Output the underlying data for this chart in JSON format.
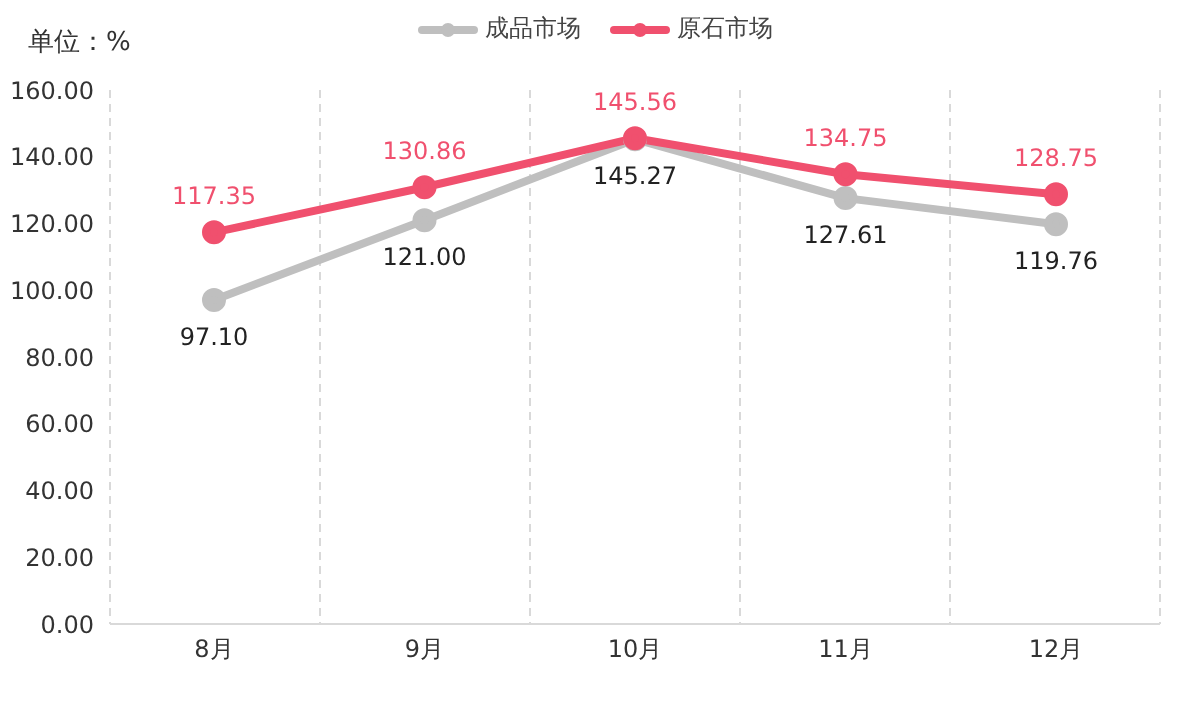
{
  "chart_data": {
    "type": "line",
    "annotations": [
      "单位：%"
    ],
    "categories": [
      "8月",
      "9月",
      "10月",
      "11月",
      "12月"
    ],
    "series": [
      {
        "name": "成品市场",
        "color": "#bfbfbf",
        "values": [
          97.1,
          121.0,
          145.27,
          127.61,
          119.76
        ],
        "value_labels": [
          "97.10",
          "121.00",
          "145.27",
          "127.61",
          "119.76"
        ]
      },
      {
        "name": "原石市场",
        "color": "#f0506e",
        "values": [
          117.35,
          130.86,
          145.56,
          134.75,
          128.75
        ],
        "value_labels": [
          "117.35",
          "130.86",
          "145.56",
          "134.75",
          "128.75"
        ]
      }
    ],
    "ylim": [
      0,
      160
    ],
    "yticks": [
      {
        "value": 0,
        "label": "0.00"
      },
      {
        "value": 20,
        "label": "20.00"
      },
      {
        "value": 40,
        "label": "40.00"
      },
      {
        "value": 60,
        "label": "60.00"
      },
      {
        "value": 80,
        "label": "80.00"
      },
      {
        "value": 100,
        "label": "100.00"
      },
      {
        "value": 120,
        "label": "120.00"
      },
      {
        "value": 140,
        "label": "140.00"
      },
      {
        "value": 160,
        "label": "160.00"
      }
    ],
    "grid": "x",
    "legend": "top",
    "marker": "circle",
    "line_style": "solid"
  }
}
